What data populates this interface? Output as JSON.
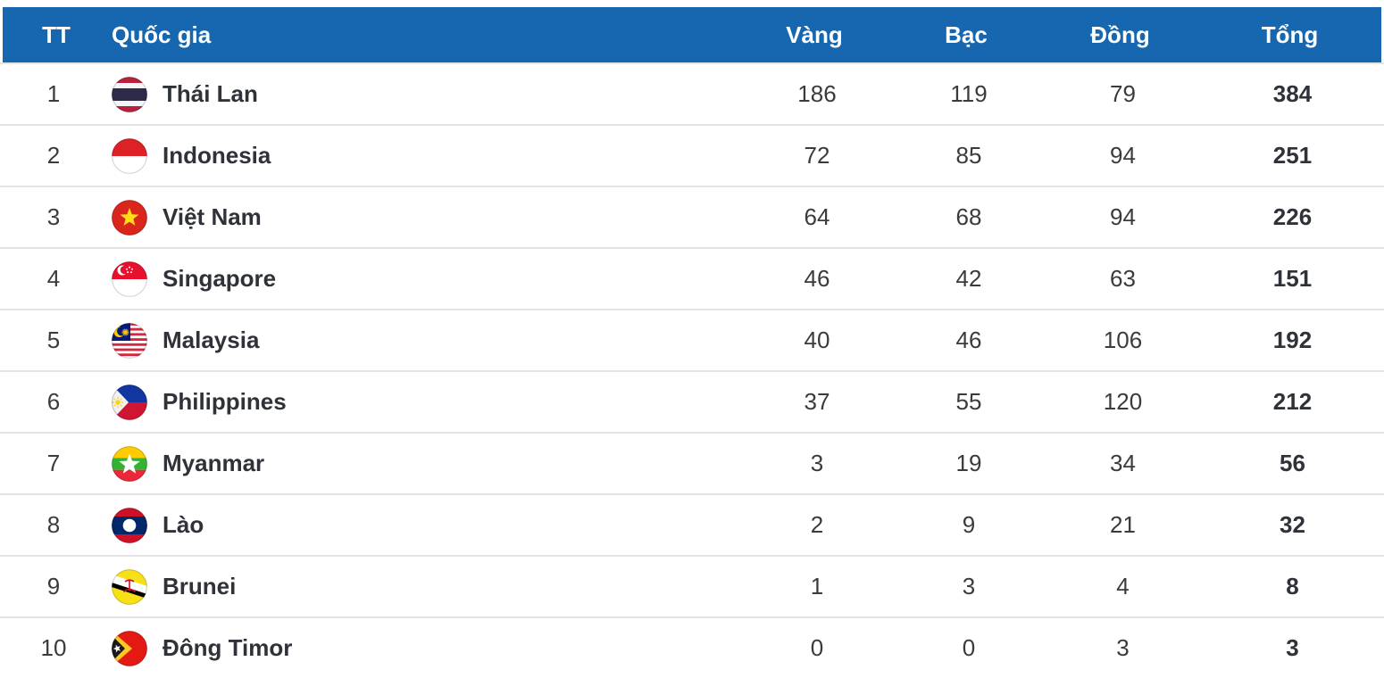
{
  "table": {
    "headers": {
      "rank": "TT",
      "country": "Quốc gia",
      "gold": "Vàng",
      "silver": "Bạc",
      "bronze": "Đồng",
      "total": "Tổng"
    },
    "rows": [
      {
        "rank": "1",
        "country": "Thái Lan",
        "flag": "thailand",
        "gold": "186",
        "silver": "119",
        "bronze": "79",
        "total": "384"
      },
      {
        "rank": "2",
        "country": "Indonesia",
        "flag": "indonesia",
        "gold": "72",
        "silver": "85",
        "bronze": "94",
        "total": "251"
      },
      {
        "rank": "3",
        "country": "Việt Nam",
        "flag": "vietnam",
        "gold": "64",
        "silver": "68",
        "bronze": "94",
        "total": "226"
      },
      {
        "rank": "4",
        "country": "Singapore",
        "flag": "singapore",
        "gold": "46",
        "silver": "42",
        "bronze": "63",
        "total": "151"
      },
      {
        "rank": "5",
        "country": "Malaysia",
        "flag": "malaysia",
        "gold": "40",
        "silver": "46",
        "bronze": "106",
        "total": "192"
      },
      {
        "rank": "6",
        "country": "Philippines",
        "flag": "philippines",
        "gold": "37",
        "silver": "55",
        "bronze": "120",
        "total": "212"
      },
      {
        "rank": "7",
        "country": "Myanmar",
        "flag": "myanmar",
        "gold": "3",
        "silver": "19",
        "bronze": "34",
        "total": "56"
      },
      {
        "rank": "8",
        "country": "Lào",
        "flag": "laos",
        "gold": "2",
        "silver": "9",
        "bronze": "21",
        "total": "32"
      },
      {
        "rank": "9",
        "country": "Brunei",
        "flag": "brunei",
        "gold": "1",
        "silver": "3",
        "bronze": "4",
        "total": "8"
      },
      {
        "rank": "10",
        "country": "Đông Timor",
        "flag": "east-timor",
        "gold": "0",
        "silver": "0",
        "bronze": "3",
        "total": "3"
      }
    ]
  },
  "colors": {
    "header_bg": "#1667af",
    "header_text": "#ffffff",
    "country_text": "#2f3238",
    "number_text": "#3b3b3b",
    "divider": "#e4e4e4"
  },
  "chart_data": {
    "type": "table",
    "columns": [
      "TT",
      "Quốc gia",
      "Vàng",
      "Bạc",
      "Đồng",
      "Tổng"
    ],
    "rows": [
      [
        "1",
        "Thái Lan",
        186,
        119,
        79,
        384
      ],
      [
        "2",
        "Indonesia",
        72,
        85,
        94,
        251
      ],
      [
        "3",
        "Việt Nam",
        64,
        68,
        94,
        226
      ],
      [
        "4",
        "Singapore",
        46,
        42,
        63,
        151
      ],
      [
        "5",
        "Malaysia",
        40,
        46,
        106,
        192
      ],
      [
        "6",
        "Philippines",
        37,
        55,
        120,
        212
      ],
      [
        "7",
        "Myanmar",
        3,
        19,
        34,
        56
      ],
      [
        "8",
        "Lào",
        2,
        9,
        21,
        32
      ],
      [
        "9",
        "Brunei",
        1,
        3,
        4,
        8
      ],
      [
        "10",
        "Đông Timor",
        0,
        0,
        3,
        3
      ]
    ]
  }
}
